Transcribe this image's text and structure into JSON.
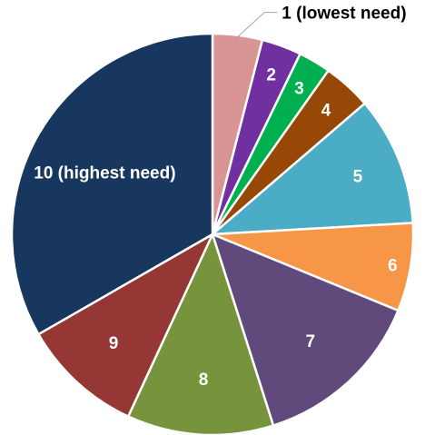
{
  "chart_data": {
    "type": "pie",
    "title": "",
    "start_angle_deg": 0,
    "direction": "clockwise",
    "slices": [
      {
        "label": "1 (lowest need)",
        "value": 4.0,
        "color": "#D99594",
        "label_position": "outside"
      },
      {
        "label": "2",
        "value": 3.2,
        "color": "#7030A0",
        "label_position": "inside"
      },
      {
        "label": "3",
        "value": 2.6,
        "color": "#00B050",
        "label_position": "inside"
      },
      {
        "label": "4",
        "value": 3.9,
        "color": "#974706",
        "label_position": "inside"
      },
      {
        "label": "5",
        "value": 10.4,
        "color": "#4BACC6",
        "label_position": "inside"
      },
      {
        "label": "6",
        "value": 7.1,
        "color": "#F79646",
        "label_position": "inside"
      },
      {
        "label": "7",
        "value": 13.9,
        "color": "#604A7B",
        "label_position": "inside"
      },
      {
        "label": "8",
        "value": 11.8,
        "color": "#77933C",
        "label_position": "inside"
      },
      {
        "label": "9",
        "value": 9.8,
        "color": "#953735",
        "label_position": "inside"
      },
      {
        "label": "10 (highest need)",
        "value": 33.3,
        "color": "#17375E",
        "label_position": "inside"
      }
    ]
  }
}
